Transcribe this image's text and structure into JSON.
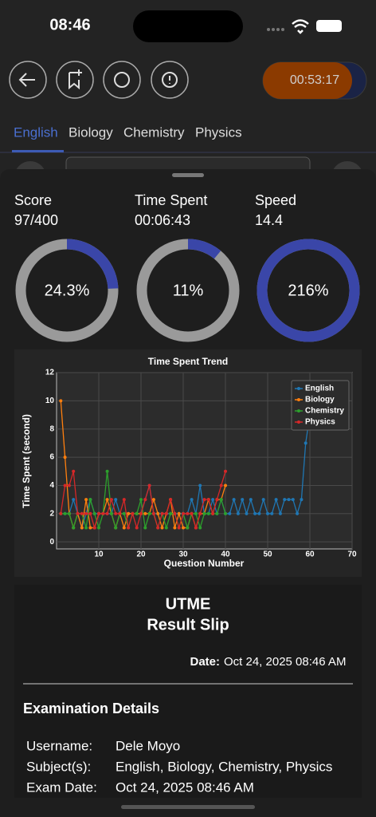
{
  "status_bar": {
    "time": "08:46"
  },
  "timer": "00:53:17",
  "tabs": [
    "English",
    "Biology",
    "Chemistry",
    "Physics"
  ],
  "stats": [
    {
      "label": "Score",
      "value": "97/400",
      "percent": 24.3,
      "percent_label": "24.3%"
    },
    {
      "label": "Time Spent",
      "value": "00:06:43",
      "percent": 11,
      "percent_label": "11%"
    },
    {
      "label": "Speed",
      "value": "14.4",
      "percent": 216,
      "percent_label": "216%"
    }
  ],
  "chart_data": {
    "type": "line",
    "title": "Time Spent Trend",
    "x_label": "Question Number",
    "y_label": "Time Spent (second)",
    "xlim": [
      0,
      70
    ],
    "xticks": [
      10,
      20,
      30,
      40,
      50,
      60,
      70
    ],
    "ylim": [
      -0.5,
      12
    ],
    "yticks": [
      0,
      2,
      4,
      6,
      8,
      10,
      12
    ],
    "grid": true,
    "legend": "upper right",
    "series": [
      {
        "name": "English",
        "color": "#1f77b4",
        "x": [
          1,
          2,
          3,
          4,
          5,
          6,
          7,
          8,
          9,
          10,
          11,
          12,
          13,
          14,
          15,
          16,
          17,
          18,
          19,
          20,
          21,
          22,
          23,
          24,
          25,
          26,
          27,
          28,
          29,
          30,
          31,
          32,
          33,
          34,
          35,
          36,
          37,
          38,
          39,
          40,
          41,
          42,
          43,
          44,
          45,
          46,
          47,
          48,
          49,
          50,
          51,
          52,
          53,
          54,
          55,
          56,
          57,
          58,
          59,
          60
        ],
        "values": [
          2,
          2,
          2,
          3,
          2,
          1,
          2,
          3,
          2,
          2,
          2,
          2,
          2,
          3,
          2,
          2,
          2,
          2,
          2,
          2,
          3,
          4,
          2,
          2,
          2,
          2,
          2,
          2,
          2,
          2,
          2,
          3,
          2,
          4,
          2,
          2,
          3,
          2,
          3,
          2,
          2,
          3,
          2,
          3,
          2,
          3,
          2,
          2,
          3,
          2,
          2,
          3,
          2,
          3,
          3,
          3,
          2,
          3,
          7,
          9
        ]
      },
      {
        "name": "Biology",
        "color": "#ff7f0e",
        "x": [
          1,
          2,
          3,
          4,
          5,
          6,
          7,
          8,
          9,
          10,
          11,
          12,
          13,
          14,
          15,
          16,
          17,
          18,
          19,
          20,
          21,
          22,
          23,
          24,
          25,
          26,
          27,
          28,
          29,
          30,
          31,
          32,
          33,
          34,
          35,
          36,
          37,
          38,
          39,
          40
        ],
        "values": [
          10,
          6,
          2,
          1,
          2,
          1,
          3,
          1,
          1,
          2,
          2,
          3,
          2,
          1,
          2,
          1,
          2,
          2,
          2,
          2,
          2,
          2,
          3,
          2,
          1,
          2,
          3,
          1,
          2,
          1,
          1,
          2,
          1,
          2,
          2,
          3,
          2,
          3,
          3,
          4
        ]
      },
      {
        "name": "Chemistry",
        "color": "#2ca02c",
        "x": [
          1,
          2,
          3,
          4,
          5,
          6,
          7,
          8,
          9,
          10,
          11,
          12,
          13,
          14,
          15,
          16,
          17,
          18,
          19,
          20,
          21,
          22,
          23,
          24,
          25,
          26,
          27,
          28,
          29,
          30,
          31,
          32,
          33,
          34,
          35,
          36,
          37,
          38,
          39,
          40
        ],
        "values": [
          2,
          2,
          2,
          1,
          2,
          2,
          1,
          3,
          2,
          1,
          2,
          5,
          2,
          1,
          2,
          2,
          1,
          2,
          2,
          3,
          1,
          2,
          2,
          1,
          2,
          1,
          2,
          2,
          1,
          2,
          1,
          2,
          2,
          1,
          2,
          2,
          2,
          2,
          3,
          2
        ]
      },
      {
        "name": "Physics",
        "color": "#d62728",
        "x": [
          1,
          2,
          3,
          4,
          5,
          6,
          7,
          8,
          9,
          10,
          11,
          12,
          13,
          14,
          15,
          16,
          17,
          18,
          19,
          20,
          21,
          22,
          23,
          24,
          25,
          26,
          27,
          28,
          29,
          30,
          31,
          32,
          33,
          34,
          35,
          36,
          37,
          38,
          39,
          40
        ],
        "values": [
          2,
          4,
          4,
          5,
          2,
          2,
          2,
          2,
          1,
          2,
          2,
          2,
          3,
          2,
          2,
          3,
          1,
          2,
          1,
          2,
          3,
          4,
          2,
          1,
          2,
          2,
          3,
          2,
          1,
          2,
          2,
          2,
          1,
          2,
          3,
          3,
          2,
          3,
          4,
          5
        ]
      }
    ]
  },
  "result_slip": {
    "title": "UTME",
    "subtitle": "Result Slip",
    "date_label": "Date:",
    "date": "Oct 24, 2025 08:46 AM",
    "section": "Examination Details",
    "rows": [
      [
        "Username:",
        "Dele Moyo"
      ],
      [
        "Subject(s):",
        "English, Biology, Chemistry, Physics"
      ],
      [
        "Exam Date:",
        "Oct 24, 2025 08:46 AM"
      ]
    ]
  }
}
